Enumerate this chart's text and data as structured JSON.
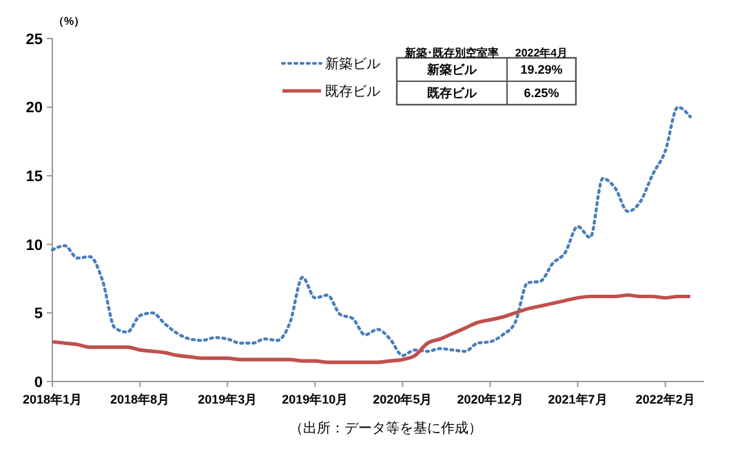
{
  "chart_data": {
    "type": "line",
    "ylabel": "（%）",
    "categories": [
      "2018年1月",
      null,
      null,
      null,
      null,
      null,
      null,
      "2018年8月",
      null,
      null,
      null,
      null,
      null,
      null,
      "2019年3月",
      null,
      null,
      null,
      null,
      null,
      null,
      "2019年10月",
      null,
      null,
      null,
      null,
      null,
      null,
      "2020年5月",
      null,
      null,
      null,
      null,
      null,
      null,
      "2020年12月",
      null,
      null,
      null,
      null,
      null,
      null,
      "2021年7月",
      null,
      null,
      null,
      null,
      null,
      null,
      "2022年2月",
      null,
      null
    ],
    "series": [
      {
        "name": "新築ビル",
        "color": "#4a7ebb",
        "line_style": "dotted",
        "values": [
          9.6,
          9.9,
          9.0,
          9.1,
          7.4,
          3.9,
          3.6,
          4.8,
          5.0,
          4.2,
          3.5,
          3.1,
          3.0,
          3.2,
          3.1,
          2.8,
          2.8,
          3.1,
          3.0,
          4.3,
          7.6,
          6.1,
          6.3,
          4.9,
          4.6,
          3.4,
          3.8,
          3.1,
          1.9,
          2.3,
          2.2,
          2.4,
          2.3,
          2.2,
          2.8,
          2.9,
          3.4,
          4.3,
          7.2,
          7.3,
          8.6,
          9.4,
          11.3,
          10.5,
          14.8,
          14.1,
          12.4,
          13.1,
          15.1,
          16.8,
          20.0,
          19.3
        ]
      },
      {
        "name": "既存ビル",
        "color": "#c0504d",
        "line_style": "solid",
        "values": [
          2.9,
          2.8,
          2.7,
          2.5,
          2.5,
          2.5,
          2.5,
          2.3,
          2.2,
          2.1,
          1.9,
          1.8,
          1.7,
          1.7,
          1.7,
          1.6,
          1.6,
          1.6,
          1.6,
          1.6,
          1.5,
          1.5,
          1.4,
          1.4,
          1.4,
          1.4,
          1.4,
          1.5,
          1.6,
          1.9,
          2.8,
          3.1,
          3.5,
          3.9,
          4.3,
          4.5,
          4.7,
          5.0,
          5.3,
          5.5,
          5.7,
          5.9,
          6.1,
          6.2,
          6.2,
          6.2,
          6.3,
          6.2,
          6.2,
          6.1,
          6.2,
          6.2
        ]
      }
    ],
    "ylim": [
      0,
      25
    ],
    "yticks": [
      0,
      5,
      10,
      15,
      20,
      25
    ],
    "grid": false,
    "legend": "top",
    "annotations": [
      "新築･既存別空室率",
      "2022年4月",
      "新築ビル",
      "19.29%",
      "既存ビル",
      "6.25%",
      "（出所：データ等を基に作成）"
    ]
  }
}
